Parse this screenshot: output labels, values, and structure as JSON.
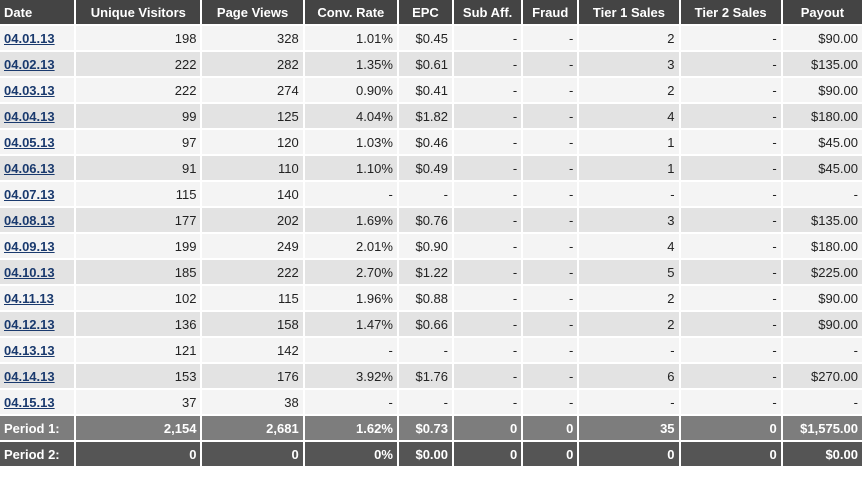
{
  "headers": [
    "Date",
    "Unique Visitors",
    "Page Views",
    "Conv. Rate",
    "EPC",
    "Sub Aff.",
    "Fraud",
    "Tier 1 Sales",
    "Tier 2 Sales",
    "Payout"
  ],
  "rows": [
    {
      "date": "04.01.13",
      "cells": [
        "198",
        "328",
        "1.01%",
        "$0.45",
        "-",
        "-",
        "2",
        "-",
        "$90.00"
      ]
    },
    {
      "date": "04.02.13",
      "cells": [
        "222",
        "282",
        "1.35%",
        "$0.61",
        "-",
        "-",
        "3",
        "-",
        "$135.00"
      ]
    },
    {
      "date": "04.03.13",
      "cells": [
        "222",
        "274",
        "0.90%",
        "$0.41",
        "-",
        "-",
        "2",
        "-",
        "$90.00"
      ]
    },
    {
      "date": "04.04.13",
      "cells": [
        "99",
        "125",
        "4.04%",
        "$1.82",
        "-",
        "-",
        "4",
        "-",
        "$180.00"
      ]
    },
    {
      "date": "04.05.13",
      "cells": [
        "97",
        "120",
        "1.03%",
        "$0.46",
        "-",
        "-",
        "1",
        "-",
        "$45.00"
      ]
    },
    {
      "date": "04.06.13",
      "cells": [
        "91",
        "110",
        "1.10%",
        "$0.49",
        "-",
        "-",
        "1",
        "-",
        "$45.00"
      ]
    },
    {
      "date": "04.07.13",
      "cells": [
        "115",
        "140",
        "-",
        "-",
        "-",
        "-",
        "-",
        "-",
        "-"
      ]
    },
    {
      "date": "04.08.13",
      "cells": [
        "177",
        "202",
        "1.69%",
        "$0.76",
        "-",
        "-",
        "3",
        "-",
        "$135.00"
      ]
    },
    {
      "date": "04.09.13",
      "cells": [
        "199",
        "249",
        "2.01%",
        "$0.90",
        "-",
        "-",
        "4",
        "-",
        "$180.00"
      ]
    },
    {
      "date": "04.10.13",
      "cells": [
        "185",
        "222",
        "2.70%",
        "$1.22",
        "-",
        "-",
        "5",
        "-",
        "$225.00"
      ]
    },
    {
      "date": "04.11.13",
      "cells": [
        "102",
        "115",
        "1.96%",
        "$0.88",
        "-",
        "-",
        "2",
        "-",
        "$90.00"
      ]
    },
    {
      "date": "04.12.13",
      "cells": [
        "136",
        "158",
        "1.47%",
        "$0.66",
        "-",
        "-",
        "2",
        "-",
        "$90.00"
      ]
    },
    {
      "date": "04.13.13",
      "cells": [
        "121",
        "142",
        "-",
        "-",
        "-",
        "-",
        "-",
        "-",
        "-"
      ]
    },
    {
      "date": "04.14.13",
      "cells": [
        "153",
        "176",
        "3.92%",
        "$1.76",
        "-",
        "-",
        "6",
        "-",
        "$270.00"
      ]
    },
    {
      "date": "04.15.13",
      "cells": [
        "37",
        "38",
        "-",
        "-",
        "-",
        "-",
        "-",
        "-",
        "-"
      ]
    }
  ],
  "totals": [
    {
      "label": "Period 1:",
      "cells": [
        "2,154",
        "2,681",
        "1.62%",
        "$0.73",
        "0",
        "0",
        "35",
        "0",
        "$1,575.00"
      ]
    },
    {
      "label": "Period 2:",
      "cells": [
        "0",
        "0",
        "0%",
        "$0.00",
        "0",
        "0",
        "0",
        "0",
        "$0.00"
      ]
    }
  ]
}
